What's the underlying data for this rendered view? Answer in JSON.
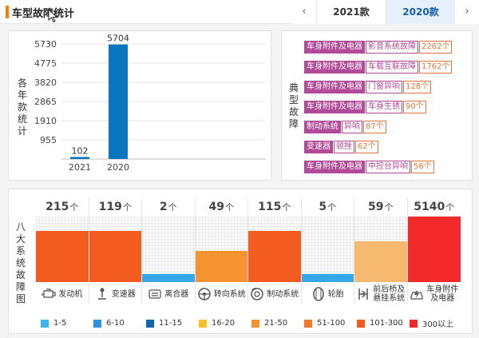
{
  "header": {
    "title": "车型故障统计",
    "prev_icon": "chevron-left-icon",
    "next_icon": "chevron-right-icon",
    "years": [
      {
        "label": "2021款",
        "active": false
      },
      {
        "label": "2020款",
        "active": true
      }
    ]
  },
  "yearly_chart": {
    "side_label": "各年款统计",
    "chart_data": {
      "type": "bar",
      "categories": [
        "2021",
        "2020"
      ],
      "values": [
        102,
        5704
      ],
      "yticks": [
        955,
        1910,
        2865,
        3820,
        4775,
        5730
      ],
      "ylim": [
        0,
        5730
      ],
      "color": "#0b75bf"
    }
  },
  "typical_faults": {
    "side_label": "典型故障",
    "items": [
      {
        "category": "车身附件及电器",
        "fault": "影音系统故障",
        "count": "2262个"
      },
      {
        "category": "车身附件及电器",
        "fault": "车载互联故障",
        "count": "1762个"
      },
      {
        "category": "车身附件及电器",
        "fault": "门窗异响",
        "count": "128个"
      },
      {
        "category": "车身附件及电器",
        "fault": "车身生锈",
        "count": "90个"
      },
      {
        "category": "制动系统",
        "fault": "异响",
        "count": "87个"
      },
      {
        "category": "变速器",
        "fault": "顿挫",
        "count": "62个"
      },
      {
        "category": "车身附件及电器",
        "fault": "中控台异响",
        "count": "56个"
      }
    ]
  },
  "eight_systems": {
    "side_label": "八大系统故障图",
    "unit": "个",
    "chart_data": {
      "type": "bar",
      "categories": [
        "发动机",
        "变速器",
        "离合器",
        "转向系统",
        "制动系统",
        "轮胎",
        "前后桥及悬挂系统",
        "车身附件及电器"
      ],
      "values": [
        215,
        119,
        2,
        49,
        115,
        5,
        59,
        5140
      ],
      "level_fraction": [
        0.78,
        0.78,
        0.12,
        0.48,
        0.78,
        0.12,
        0.62,
        1.0
      ],
      "colors": [
        "#f45b1f",
        "#f45b1f",
        "#36a8ea",
        "#f59331",
        "#f45b1f",
        "#36a8ea",
        "#f7b86f",
        "#f42a2a"
      ]
    },
    "systems": [
      {
        "label": "发动机",
        "icon": "engine-icon"
      },
      {
        "label": "变速器",
        "icon": "gear-shift-icon"
      },
      {
        "label": "离合器",
        "icon": "clutch-icon"
      },
      {
        "label": "转向系统",
        "icon": "steering-wheel-icon"
      },
      {
        "label": "制动系统",
        "icon": "brake-icon"
      },
      {
        "label": "轮胎",
        "icon": "tire-icon"
      },
      {
        "label": "前后桥及悬挂系统",
        "label_lines": [
          "前后桥及",
          "悬挂系统"
        ],
        "icon": "suspension-icon"
      },
      {
        "label": "车身附件及电器",
        "label_lines": [
          "车身附件",
          "及电器"
        ],
        "icon": "car-body-icon"
      }
    ],
    "legend": [
      {
        "label": "1-5",
        "color": "#3fb2f0"
      },
      {
        "label": "6-10",
        "color": "#2f8fe0"
      },
      {
        "label": "11-15",
        "color": "#1166b0"
      },
      {
        "label": "16-20",
        "color": "#f5c022"
      },
      {
        "label": "21-50",
        "color": "#f59331"
      },
      {
        "label": "51-100",
        "color": "#f4772a"
      },
      {
        "label": "101-300",
        "color": "#f45b1f"
      },
      {
        "label": "300以上",
        "color": "#f42a2a"
      }
    ]
  }
}
